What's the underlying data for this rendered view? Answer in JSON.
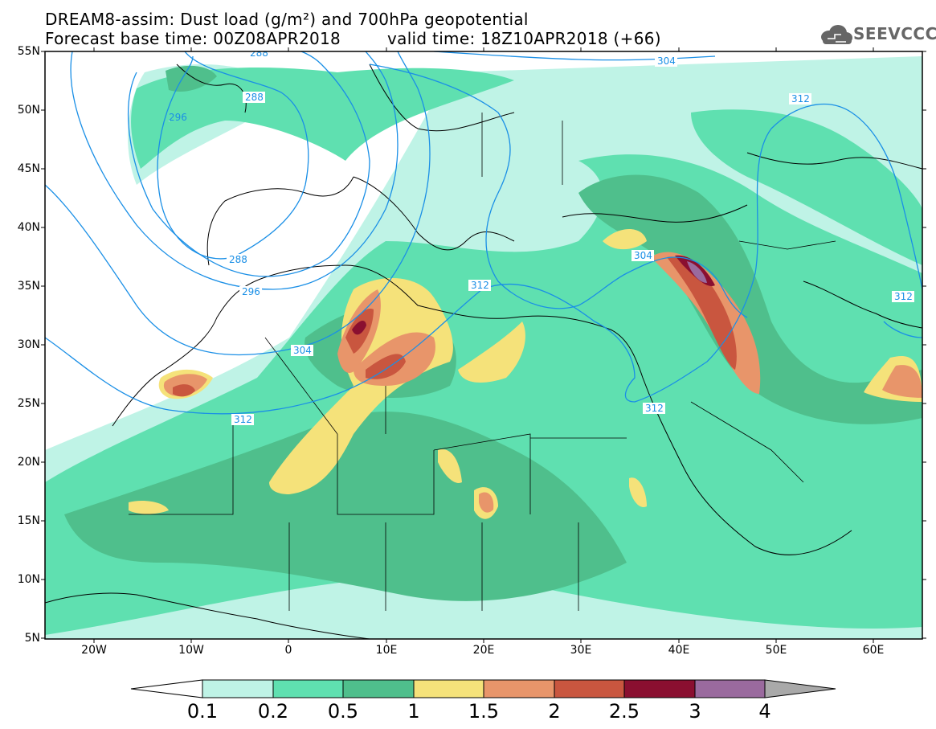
{
  "header": {
    "title_line1": "DREAM8-assim: Dust load (g/m²) and 700hPa geopotential",
    "title_line2_left": "Forecast base time: 00Z08APR2018",
    "title_line2_right": "valid time: 18Z10APR2018 (+66)"
  },
  "logo": {
    "text": "SEEVCCC",
    "icon": "cloud-icon"
  },
  "map": {
    "lat_ticks": [
      "55N",
      "50N",
      "45N",
      "40N",
      "35N",
      "30N",
      "25N",
      "20N",
      "15N",
      "10N",
      "5N"
    ],
    "lon_ticks": [
      "20W",
      "10W",
      "0",
      "10E",
      "20E",
      "30E",
      "40E",
      "50E",
      "60E"
    ],
    "contour_labels": [
      "288",
      "288",
      "296",
      "288",
      "296",
      "304",
      "312",
      "304",
      "312",
      "312",
      "304",
      "312",
      "312"
    ],
    "contour_color": "#1a8fe6",
    "extent": {
      "lon": [
        -25,
        65
      ],
      "lat": [
        5,
        55
      ]
    }
  },
  "colorbar": {
    "labels": [
      "0.1",
      "0.2",
      "0.5",
      "1",
      "1.5",
      "2",
      "2.5",
      "3",
      "4"
    ],
    "colors": [
      "#bff3e6",
      "#5fe0b0",
      "#4fbf8c",
      "#f5e27a",
      "#e8956a",
      "#c9563f",
      "#8a0f30",
      "#9a6a9e",
      "#a9a9a9"
    ]
  }
}
